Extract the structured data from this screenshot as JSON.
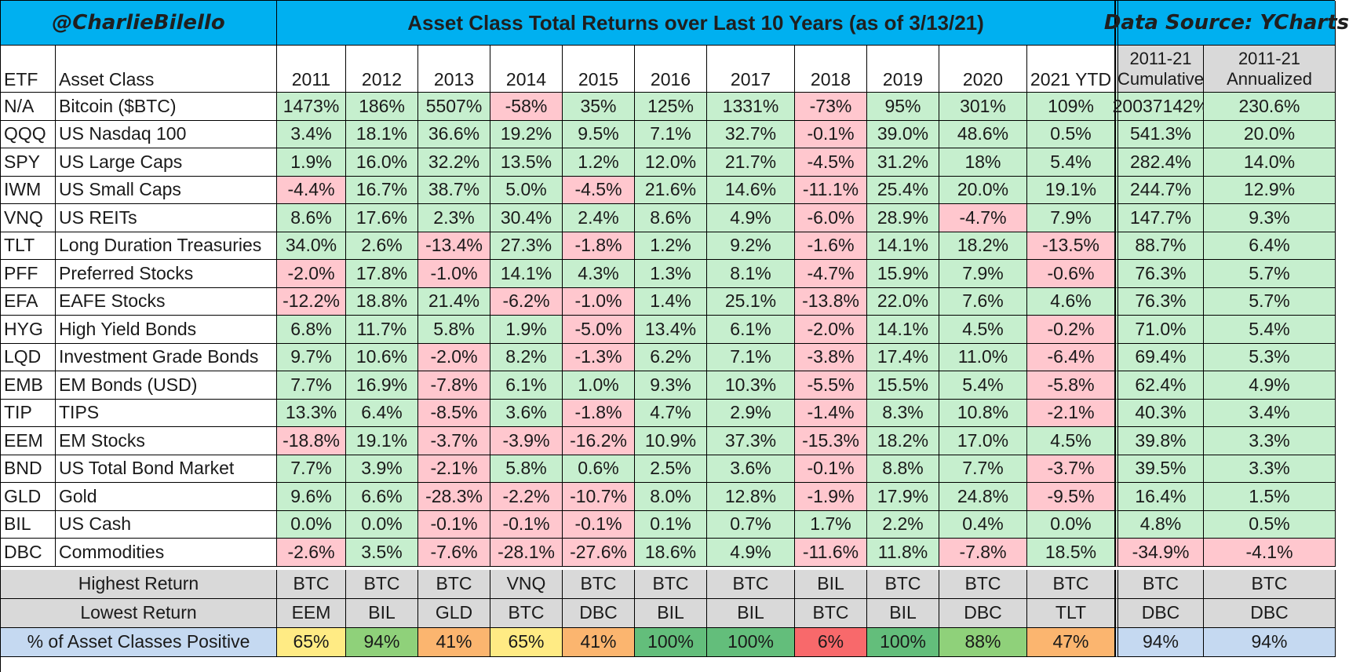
{
  "header": {
    "author": "@CharlieBilello",
    "title": "Asset Class Total Returns over Last 10 Years (as of 3/13/21)",
    "source": "Data Source: YCharts"
  },
  "columns": {
    "etf": "ETF",
    "asset_class": "Asset Class",
    "years": [
      "2011",
      "2012",
      "2013",
      "2014",
      "2015",
      "2016",
      "2017",
      "2018",
      "2019",
      "2020",
      "2021 YTD"
    ],
    "cumulative": [
      "2011-21",
      "Cumulative"
    ],
    "annualized": [
      "2011-21",
      "Annualized"
    ]
  },
  "rows": [
    {
      "etf": "N/A",
      "name": "Bitcoin ($BTC)",
      "v": [
        "1473%",
        "186%",
        "5507%",
        "-58%",
        "35%",
        "125%",
        "1331%",
        "-73%",
        "95%",
        "301%",
        "109%"
      ],
      "cum": "20037142%",
      "ann": "230.6%"
    },
    {
      "etf": "QQQ",
      "name": "US Nasdaq 100",
      "v": [
        "3.4%",
        "18.1%",
        "36.6%",
        "19.2%",
        "9.5%",
        "7.1%",
        "32.7%",
        "-0.1%",
        "39.0%",
        "48.6%",
        "0.5%"
      ],
      "cum": "541.3%",
      "ann": "20.0%"
    },
    {
      "etf": "SPY",
      "name": "US Large Caps",
      "v": [
        "1.9%",
        "16.0%",
        "32.2%",
        "13.5%",
        "1.2%",
        "12.0%",
        "21.7%",
        "-4.5%",
        "31.2%",
        "18%",
        "5.4%"
      ],
      "cum": "282.4%",
      "ann": "14.0%"
    },
    {
      "etf": "IWM",
      "name": "US Small Caps",
      "v": [
        "-4.4%",
        "16.7%",
        "38.7%",
        "5.0%",
        "-4.5%",
        "21.6%",
        "14.6%",
        "-11.1%",
        "25.4%",
        "20.0%",
        "19.1%"
      ],
      "cum": "244.7%",
      "ann": "12.9%"
    },
    {
      "etf": "VNQ",
      "name": "US REITs",
      "v": [
        "8.6%",
        "17.6%",
        "2.3%",
        "30.4%",
        "2.4%",
        "8.6%",
        "4.9%",
        "-6.0%",
        "28.9%",
        "-4.7%",
        "7.9%"
      ],
      "cum": "147.7%",
      "ann": "9.3%"
    },
    {
      "etf": "TLT",
      "name": "Long Duration Treasuries",
      "v": [
        "34.0%",
        "2.6%",
        "-13.4%",
        "27.3%",
        "-1.8%",
        "1.2%",
        "9.2%",
        "-1.6%",
        "14.1%",
        "18.2%",
        "-13.5%"
      ],
      "cum": "88.7%",
      "ann": "6.4%"
    },
    {
      "etf": "PFF",
      "name": "Preferred Stocks",
      "v": [
        "-2.0%",
        "17.8%",
        "-1.0%",
        "14.1%",
        "4.3%",
        "1.3%",
        "8.1%",
        "-4.7%",
        "15.9%",
        "7.9%",
        "-0.6%"
      ],
      "cum": "76.3%",
      "ann": "5.7%"
    },
    {
      "etf": "EFA",
      "name": "EAFE Stocks",
      "v": [
        "-12.2%",
        "18.8%",
        "21.4%",
        "-6.2%",
        "-1.0%",
        "1.4%",
        "25.1%",
        "-13.8%",
        "22.0%",
        "7.6%",
        "4.6%"
      ],
      "cum": "76.3%",
      "ann": "5.7%"
    },
    {
      "etf": "HYG",
      "name": "High Yield Bonds",
      "v": [
        "6.8%",
        "11.7%",
        "5.8%",
        "1.9%",
        "-5.0%",
        "13.4%",
        "6.1%",
        "-2.0%",
        "14.1%",
        "4.5%",
        "-0.2%"
      ],
      "cum": "71.0%",
      "ann": "5.4%"
    },
    {
      "etf": "LQD",
      "name": "Investment Grade Bonds",
      "v": [
        "9.7%",
        "10.6%",
        "-2.0%",
        "8.2%",
        "-1.3%",
        "6.2%",
        "7.1%",
        "-3.8%",
        "17.4%",
        "11.0%",
        "-6.4%"
      ],
      "cum": "69.4%",
      "ann": "5.3%"
    },
    {
      "etf": "EMB",
      "name": "EM Bonds (USD)",
      "v": [
        "7.7%",
        "16.9%",
        "-7.8%",
        "6.1%",
        "1.0%",
        "9.3%",
        "10.3%",
        "-5.5%",
        "15.5%",
        "5.4%",
        "-5.8%"
      ],
      "cum": "62.4%",
      "ann": "4.9%"
    },
    {
      "etf": "TIP",
      "name": "TIPS",
      "v": [
        "13.3%",
        "6.4%",
        "-8.5%",
        "3.6%",
        "-1.8%",
        "4.7%",
        "2.9%",
        "-1.4%",
        "8.3%",
        "10.8%",
        "-2.1%"
      ],
      "cum": "40.3%",
      "ann": "3.4%"
    },
    {
      "etf": "EEM",
      "name": "EM Stocks",
      "v": [
        "-18.8%",
        "19.1%",
        "-3.7%",
        "-3.9%",
        "-16.2%",
        "10.9%",
        "37.3%",
        "-15.3%",
        "18.2%",
        "17.0%",
        "4.5%"
      ],
      "cum": "39.8%",
      "ann": "3.3%"
    },
    {
      "etf": "BND",
      "name": "US Total Bond Market",
      "v": [
        "7.7%",
        "3.9%",
        "-2.1%",
        "5.8%",
        "0.6%",
        "2.5%",
        "3.6%",
        "-0.1%",
        "8.8%",
        "7.7%",
        "-3.7%"
      ],
      "cum": "39.5%",
      "ann": "3.3%"
    },
    {
      "etf": "GLD",
      "name": "Gold",
      "v": [
        "9.6%",
        "6.6%",
        "-28.3%",
        "-2.2%",
        "-10.7%",
        "8.0%",
        "12.8%",
        "-1.9%",
        "17.9%",
        "24.8%",
        "-9.5%"
      ],
      "cum": "16.4%",
      "ann": "1.5%"
    },
    {
      "etf": "BIL",
      "name": "US Cash",
      "v": [
        "0.0%",
        "0.0%",
        "-0.1%",
        "-0.1%",
        "-0.1%",
        "0.1%",
        "0.7%",
        "1.7%",
        "2.2%",
        "0.4%",
        "0.0%"
      ],
      "cum": "4.8%",
      "ann": "0.5%"
    },
    {
      "etf": "DBC",
      "name": "Commodities",
      "v": [
        "-2.6%",
        "3.5%",
        "-7.6%",
        "-28.1%",
        "-27.6%",
        "18.6%",
        "4.9%",
        "-11.6%",
        "11.8%",
        "-7.8%",
        "18.5%"
      ],
      "cum": "-34.9%",
      "ann": "-4.1%"
    }
  ],
  "summary": {
    "highest_label": "Highest Return",
    "highest": [
      "BTC",
      "BTC",
      "BTC",
      "VNQ",
      "BTC",
      "BTC",
      "BTC",
      "BIL",
      "BTC",
      "BTC",
      "BTC",
      "BTC",
      "BTC"
    ],
    "lowest_label": "Lowest Return",
    "lowest": [
      "EEM",
      "BIL",
      "GLD",
      "BTC",
      "DBC",
      "BIL",
      "BIL",
      "BTC",
      "BIL",
      "DBC",
      "TLT",
      "DBC",
      "DBC"
    ],
    "positive_label": "% of Asset Classes Positive",
    "positive": [
      "65%",
      "94%",
      "41%",
      "65%",
      "41%",
      "100%",
      "100%",
      "6%",
      "100%",
      "88%",
      "47%",
      "94%",
      "94%"
    ],
    "positive_colors": [
      "#ffeb84",
      "#8fd17a",
      "#fbb56f",
      "#ffeb84",
      "#fbb56f",
      "#63be7b",
      "#63be7b",
      "#f8696b",
      "#63be7b",
      "#8fd17a",
      "#fbb56f",
      "#c5d9f1",
      "#c5d9f1"
    ]
  },
  "colors": {
    "positive_cell": "#c6efce",
    "negative_cell": "#ffc7ce",
    "header_blue": "#00b0f0",
    "gray": "#d9d9d9",
    "light_blue": "#c5d9f1"
  }
}
